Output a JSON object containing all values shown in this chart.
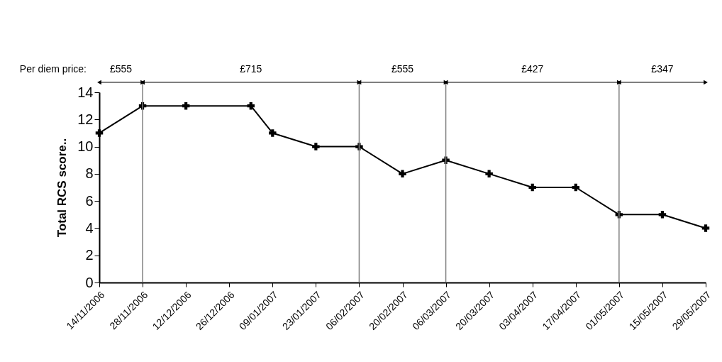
{
  "chart_data": {
    "type": "line",
    "ylabel": "Total RCS score..",
    "x": [
      "2006-11-14",
      "2006-11-28",
      "2006-12-12",
      "2007-01-02",
      "2007-01-09",
      "2007-01-23",
      "2007-02-06",
      "2007-02-20",
      "2007-03-06",
      "2007-03-20",
      "2007-04-03",
      "2007-04-17",
      "2007-05-01",
      "2007-05-15",
      "2007-05-29"
    ],
    "series": [
      {
        "color": "#000000",
        "values": [
          11,
          13,
          13,
          13,
          11,
          10,
          10,
          8,
          9,
          8,
          7,
          7,
          5,
          5,
          4
        ]
      }
    ],
    "xlim": [
      "2006-11-14",
      "2007-05-29"
    ],
    "xticks": [
      {
        "value": "2006-11-14",
        "label": "14/11/2006"
      },
      {
        "value": "2006-11-28",
        "label": "28/11/2006"
      },
      {
        "value": "2006-12-12",
        "label": "12/12/2006"
      },
      {
        "value": "2006-12-26",
        "label": "26/12/2006"
      },
      {
        "value": "2007-01-09",
        "label": "09/01/2007"
      },
      {
        "value": "2007-01-23",
        "label": "23/01/2007"
      },
      {
        "value": "2007-02-06",
        "label": "06/02/2007"
      },
      {
        "value": "2007-02-20",
        "label": "20/02/2007"
      },
      {
        "value": "2007-03-06",
        "label": "06/03/2007"
      },
      {
        "value": "2007-03-20",
        "label": "20/03/2007"
      },
      {
        "value": "2007-04-03",
        "label": "03/04/2007"
      },
      {
        "value": "2007-04-17",
        "label": "17/04/2007"
      },
      {
        "value": "2007-05-01",
        "label": "01/05/2007"
      },
      {
        "value": "2007-05-15",
        "label": "15/05/2007"
      },
      {
        "value": "2007-05-29",
        "label": "29/05/2007"
      }
    ],
    "ylim": [
      0,
      14
    ],
    "yticks": [
      0,
      2,
      4,
      6,
      8,
      10,
      12,
      14
    ],
    "marker": "cross",
    "line_style": "solid",
    "ref_lines": [
      {
        "axis": "x",
        "value": "2006-11-28",
        "color": "#808080"
      },
      {
        "axis": "x",
        "value": "2007-02-06",
        "color": "#808080"
      },
      {
        "axis": "x",
        "value": "2007-03-06",
        "color": "#808080"
      },
      {
        "axis": "x",
        "value": "2007-05-01",
        "color": "#808080"
      }
    ],
    "annotations": [
      "Per diem price:",
      "£555",
      "£715",
      "£555",
      "£427",
      "£347"
    ]
  }
}
